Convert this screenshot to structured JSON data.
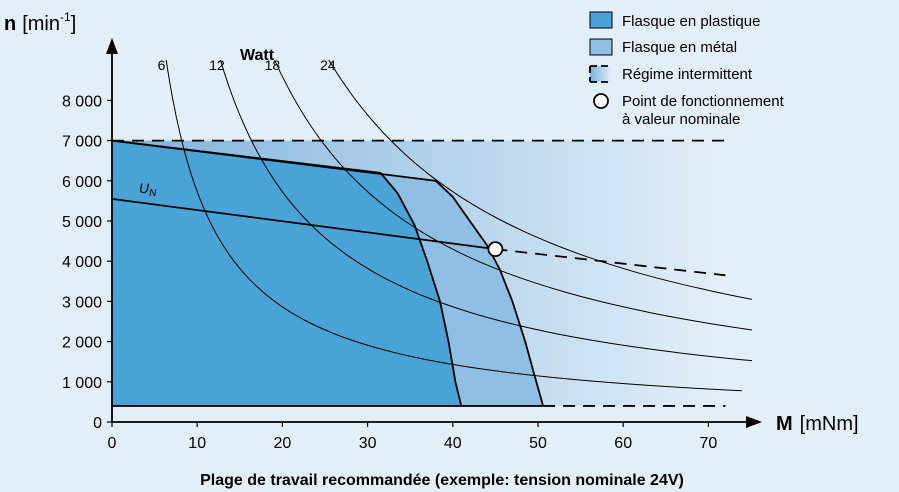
{
  "chart_data": {
    "type": "line",
    "title": "",
    "caption": "Plage de travail recommandée (exemple: tension nominale 24V)",
    "xlabel_symbol": "M",
    "xlabel_unit": "[mNm]",
    "ylabel_symbol": "n",
    "ylabel_unit_base": "[min",
    "ylabel_unit_exp": "-1",
    "ylabel_unit_close": "]",
    "xlim": [
      0,
      75
    ],
    "ylim": [
      0,
      8500
    ],
    "x_ticks": [
      0,
      10,
      20,
      30,
      40,
      50,
      60,
      70
    ],
    "x_tick_labels": [
      "0",
      "10",
      "20",
      "30",
      "40",
      "50",
      "60",
      "70"
    ],
    "y_ticks": [
      0,
      1000,
      2000,
      3000,
      4000,
      5000,
      6000,
      7000,
      8000
    ],
    "y_tick_labels": [
      "0",
      "1 000",
      "2 000",
      "3 000",
      "4 000",
      "5 000",
      "6 000",
      "7 000",
      "8 000"
    ],
    "power_title": "Watt",
    "power_curves": [
      {
        "label": "6",
        "watt": 6
      },
      {
        "label": "12",
        "watt": 12
      },
      {
        "label": "18",
        "watt": 18
      },
      {
        "label": "24",
        "watt": 24
      }
    ],
    "regions": {
      "plastic": [
        [
          0,
          400
        ],
        [
          0,
          7000
        ],
        [
          31.5,
          6200
        ],
        [
          33.5,
          5700
        ],
        [
          35.5,
          4900
        ],
        [
          37,
          4000
        ],
        [
          38.5,
          3000
        ],
        [
          39.5,
          2000
        ],
        [
          40.3,
          1000
        ],
        [
          41,
          400
        ]
      ],
      "metal": [
        [
          0,
          400
        ],
        [
          0,
          7000
        ],
        [
          38,
          6000
        ],
        [
          40,
          5600
        ],
        [
          42,
          5000
        ],
        [
          44,
          4400
        ],
        [
          45.5,
          3800
        ],
        [
          47,
          3000
        ],
        [
          48.5,
          2000
        ],
        [
          49.8,
          1000
        ],
        [
          50.6,
          400
        ]
      ],
      "max_speed_dashed": {
        "from_x": 0,
        "to_x": 72,
        "y": 7000
      },
      "min_speed_line": {
        "from_x": 0,
        "to_x": 50.6,
        "y": 400
      },
      "min_speed_dashed": {
        "from_x": 50.6,
        "to_x": 72,
        "y": 400
      }
    },
    "nominal_voltage_line": {
      "label": "U",
      "label_sub": "N",
      "points": [
        [
          0,
          5550
        ],
        [
          45,
          4300
        ]
      ],
      "dashed_points": [
        [
          45,
          4300
        ],
        [
          72,
          3650
        ]
      ]
    },
    "operating_point": {
      "x": 45,
      "y": 4300
    },
    "legend": {
      "placement": "top-right",
      "items": [
        {
          "label": "Flasque en plastique",
          "swatch": "plastic"
        },
        {
          "label": "Flasque en métal",
          "swatch": "metal"
        },
        {
          "label": "Régime intermittent",
          "swatch": "dashed"
        },
        {
          "label_line1": "Point de fonctionnement",
          "label_line2": "à valeur nominale",
          "swatch": "circle"
        }
      ]
    },
    "colors": {
      "background": "#e3eff8",
      "plastic": "#4aa3d6",
      "metal": "#8fbfe2",
      "gradient_start": "#7fb2dc",
      "gradient_end": "#e3eff8",
      "line": "#000000"
    }
  }
}
